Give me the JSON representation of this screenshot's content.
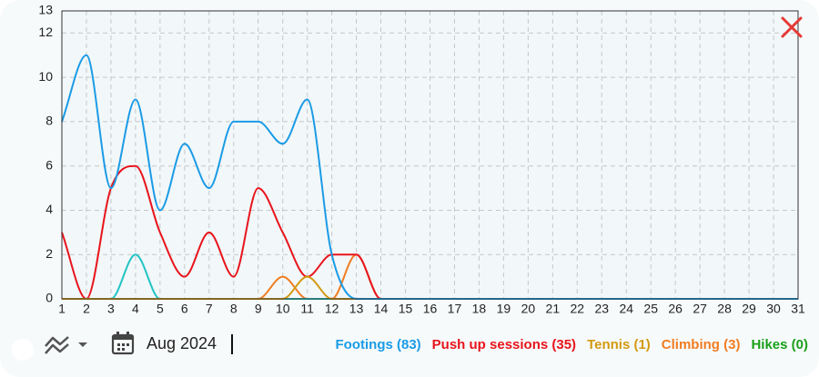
{
  "chart_data": {
    "type": "line",
    "x": [
      1,
      2,
      3,
      4,
      5,
      6,
      7,
      8,
      9,
      10,
      11,
      12,
      13,
      14,
      15,
      16,
      17,
      18,
      19,
      20,
      21,
      22,
      23,
      24,
      25,
      26,
      27,
      28,
      29,
      30,
      31
    ],
    "xlim": [
      1,
      31
    ],
    "ylim": [
      0,
      13
    ],
    "yticks": [
      0,
      2,
      4,
      6,
      8,
      10,
      12,
      13
    ],
    "grid": true,
    "series": [
      {
        "name": "Footings (83)",
        "color": "#1a9be6",
        "values": [
          8,
          11,
          5,
          9,
          4,
          7,
          5,
          8,
          8,
          7,
          9,
          2,
          0,
          0,
          0,
          0,
          0,
          0,
          0,
          0,
          0,
          0,
          0,
          0,
          0,
          0,
          0,
          0,
          0,
          0,
          0
        ]
      },
      {
        "name": "Push up sessions (35)",
        "color": "#e8141c",
        "values": [
          3,
          0,
          5,
          6,
          3,
          1,
          3,
          1,
          5,
          3,
          1,
          2,
          2,
          0,
          0,
          0,
          0,
          0,
          0,
          0,
          0,
          0,
          0,
          0,
          0,
          0,
          0,
          0,
          0,
          0,
          0
        ]
      },
      {
        "name": "Tennis (1)",
        "color": "#d39a10",
        "values": [
          0,
          0,
          0,
          0,
          0,
          0,
          0,
          0,
          0,
          0,
          1,
          0,
          0,
          0,
          0,
          0,
          0,
          0,
          0,
          0,
          0,
          0,
          0,
          0,
          0,
          0,
          0,
          0,
          0,
          0,
          0
        ]
      },
      {
        "name": "Climbing (3)",
        "color": "#f07d22",
        "values": [
          0,
          0,
          0,
          0,
          0,
          0,
          0,
          0,
          0,
          1,
          0,
          0,
          2,
          0,
          0,
          0,
          0,
          0,
          0,
          0,
          0,
          0,
          0,
          0,
          0,
          0,
          0,
          0,
          0,
          0,
          0
        ]
      },
      {
        "name": "Hikes (0)",
        "color": "#1aa01a",
        "values": [
          0,
          0,
          0,
          0,
          0,
          0,
          0,
          0,
          0,
          0,
          0,
          0,
          0,
          0,
          0,
          0,
          0,
          0,
          0,
          0,
          0,
          0,
          0,
          0,
          0,
          0,
          0,
          0,
          0,
          0,
          0
        ]
      },
      {
        "color": "#22c4c4",
        "values": [
          0,
          0,
          0,
          2,
          0,
          0,
          0,
          0,
          0,
          0,
          0,
          0,
          0,
          0,
          0,
          0,
          0,
          0,
          0,
          0,
          0,
          0,
          0,
          0,
          0,
          0,
          0,
          0,
          0,
          0,
          0
        ]
      }
    ]
  },
  "controls": {
    "period": "Aug 2024"
  }
}
